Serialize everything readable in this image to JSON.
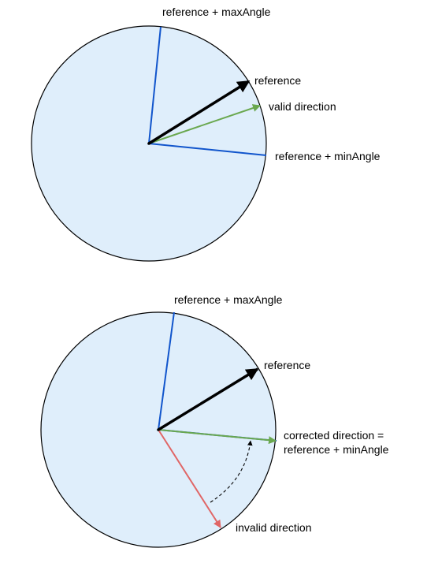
{
  "colors": {
    "disc_fill": "#dfeefb",
    "disc_stroke": "#000000",
    "limit_line": "#1155cc",
    "reference_arrow": "#000000",
    "valid_arrow": "#6aa84f",
    "invalid_arrow": "#e06666",
    "correction_path": "#000000"
  },
  "top_diagram": {
    "label_max": "reference + maxAngle",
    "label_reference": "reference",
    "label_valid": "valid direction",
    "label_min": "reference + minAngle"
  },
  "bottom_diagram": {
    "label_max": "reference + maxAngle",
    "label_reference": "reference",
    "label_corrected_1": "corrected direction =",
    "label_corrected_2": "reference + minAngle",
    "label_invalid": "invalid direction"
  }
}
